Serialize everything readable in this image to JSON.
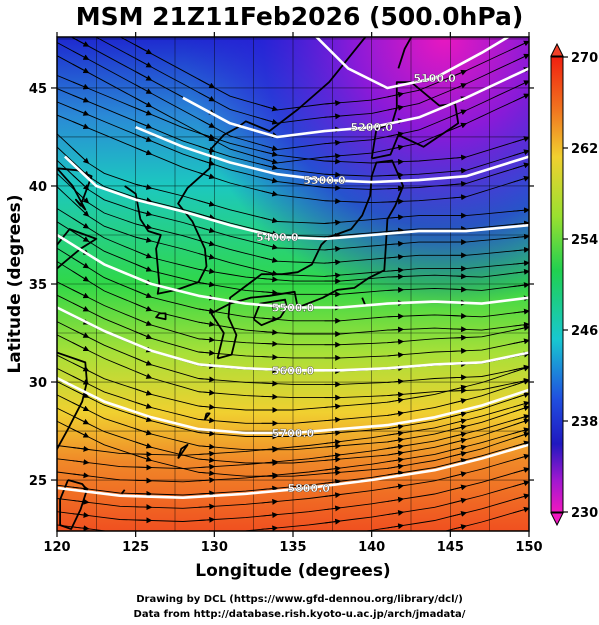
{
  "title": "MSM 21Z11Feb2026 (500.0hPa)",
  "credits": {
    "line1": "Drawing by DCL (https://www.gfd-dennou.org/library/dcl/)",
    "line2": "Data from http://database.rish.kyoto-u.ac.jp/arch/jmadata/"
  },
  "map": {
    "xlabel": "Longitude (degrees)",
    "ylabel": "Latitude  (degrees)",
    "xlim": [
      120,
      150
    ],
    "ylim": [
      22.4,
      47.6
    ],
    "xticks": [
      "120",
      "125",
      "130",
      "135",
      "140",
      "145",
      "150"
    ],
    "yticks": [
      "25",
      "30",
      "35",
      "40",
      "45"
    ],
    "contours": [
      {
        "label": "5100.0",
        "points": [
          [
            136.0,
            48.0
          ],
          [
            138.5,
            46.0
          ],
          [
            141.0,
            45.0
          ],
          [
            144.0,
            45.5
          ],
          [
            147.0,
            46.8
          ],
          [
            149.5,
            48.0
          ]
        ]
      },
      {
        "label": "5200.0",
        "points": [
          [
            128.0,
            44.5
          ],
          [
            131.0,
            43.2
          ],
          [
            134.0,
            42.5
          ],
          [
            137.0,
            42.8
          ],
          [
            140.0,
            43.0
          ],
          [
            143.0,
            43.5
          ],
          [
            146.0,
            44.5
          ],
          [
            150.0,
            46.0
          ]
        ]
      },
      {
        "label": "5300.0",
        "points": [
          [
            125.0,
            43.0
          ],
          [
            128.0,
            42.0
          ],
          [
            131.0,
            41.2
          ],
          [
            134.0,
            40.6
          ],
          [
            137.0,
            40.3
          ],
          [
            140.0,
            40.2
          ],
          [
            143.0,
            40.3
          ],
          [
            146.0,
            40.5
          ],
          [
            150.0,
            41.5
          ]
        ]
      },
      {
        "label": "5400.0",
        "points": [
          [
            120.5,
            41.5
          ],
          [
            122.5,
            40.0
          ],
          [
            125.0,
            39.3
          ],
          [
            128.0,
            38.7
          ],
          [
            131.0,
            38.0
          ],
          [
            134.0,
            37.4
          ],
          [
            137.0,
            37.3
          ],
          [
            140.0,
            37.5
          ],
          [
            143.0,
            37.7
          ],
          [
            146.0,
            37.7
          ],
          [
            150.0,
            38.0
          ]
        ]
      },
      {
        "label": "5500.0",
        "points": [
          [
            120.0,
            37.5
          ],
          [
            123.0,
            36.0
          ],
          [
            126.0,
            35.0
          ],
          [
            129.0,
            34.4
          ],
          [
            132.0,
            34.0
          ],
          [
            135.0,
            33.8
          ],
          [
            138.0,
            33.8
          ],
          [
            141.0,
            34.0
          ],
          [
            144.0,
            34.1
          ],
          [
            147.0,
            34.0
          ],
          [
            150.0,
            34.3
          ]
        ]
      },
      {
        "label": "5600.0",
        "points": [
          [
            120.0,
            33.8
          ],
          [
            123.0,
            32.6
          ],
          [
            126.0,
            31.6
          ],
          [
            129.0,
            30.9
          ],
          [
            132.0,
            30.7
          ],
          [
            135.0,
            30.6
          ],
          [
            138.0,
            30.6
          ],
          [
            141.0,
            30.7
          ],
          [
            144.0,
            30.9
          ],
          [
            147.0,
            31.0
          ],
          [
            150.0,
            31.5
          ]
        ]
      },
      {
        "label": "5700.0",
        "points": [
          [
            120.0,
            30.2
          ],
          [
            123.0,
            29.0
          ],
          [
            126.0,
            28.2
          ],
          [
            129.0,
            27.6
          ],
          [
            132.0,
            27.4
          ],
          [
            135.0,
            27.4
          ],
          [
            138.0,
            27.6
          ],
          [
            141.0,
            27.8
          ],
          [
            144.0,
            28.2
          ],
          [
            147.0,
            28.8
          ],
          [
            150.0,
            29.6
          ]
        ]
      },
      {
        "label": "5800.0",
        "points": [
          [
            120.0,
            24.6
          ],
          [
            124.0,
            24.2
          ],
          [
            128.0,
            24.1
          ],
          [
            132.0,
            24.3
          ],
          [
            136.0,
            24.6
          ],
          [
            140.0,
            25.0
          ],
          [
            144.0,
            25.5
          ],
          [
            147.0,
            26.1
          ],
          [
            150.0,
            26.8
          ]
        ]
      }
    ],
    "coastlines": [
      [
        [
          130.2,
          31.2
        ],
        [
          130.6,
          32.5
        ],
        [
          129.8,
          33.5
        ],
        [
          131.0,
          34.0
        ],
        [
          132.3,
          34.3
        ],
        [
          133.5,
          34.4
        ],
        [
          135.1,
          34.6
        ],
        [
          135.3,
          33.8
        ],
        [
          136.9,
          34.3
        ],
        [
          137.8,
          34.7
        ],
        [
          138.9,
          34.8
        ],
        [
          139.8,
          35.3
        ],
        [
          140.8,
          35.7
        ],
        [
          140.9,
          36.9
        ],
        [
          141.0,
          38.3
        ],
        [
          141.5,
          39.0
        ],
        [
          142.0,
          40.0
        ],
        [
          141.3,
          41.3
        ],
        [
          140.3,
          41.2
        ],
        [
          140.0,
          40.5
        ],
        [
          139.9,
          39.5
        ],
        [
          139.4,
          38.5
        ],
        [
          138.7,
          37.8
        ],
        [
          137.3,
          37.4
        ],
        [
          136.8,
          37.0
        ],
        [
          136.2,
          36.0
        ],
        [
          135.3,
          35.6
        ],
        [
          134.3,
          35.5
        ],
        [
          133.0,
          35.5
        ],
        [
          132.0,
          34.9
        ],
        [
          131.0,
          34.3
        ],
        [
          130.9,
          33.3
        ],
        [
          131.4,
          32.4
        ],
        [
          131.1,
          31.4
        ],
        [
          130.2,
          31.2
        ]
      ],
      [
        [
          132.5,
          33.2
        ],
        [
          132.9,
          34.0
        ],
        [
          134.5,
          34.2
        ],
        [
          134.6,
          33.8
        ],
        [
          134.2,
          33.3
        ],
        [
          133.0,
          32.9
        ],
        [
          132.5,
          33.2
        ]
      ],
      [
        [
          140.0,
          41.4
        ],
        [
          141.2,
          41.6
        ],
        [
          141.7,
          42.6
        ],
        [
          143.3,
          42.0
        ],
        [
          145.5,
          43.2
        ],
        [
          145.3,
          44.2
        ],
        [
          144.3,
          44.1
        ],
        [
          142.5,
          45.3
        ],
        [
          141.6,
          45.3
        ],
        [
          141.6,
          44.0
        ],
        [
          141.3,
          43.2
        ],
        [
          140.3,
          42.9
        ],
        [
          140.0,
          41.4
        ]
      ],
      [
        [
          141.7,
          46.0
        ],
        [
          142.1,
          47.0
        ],
        [
          142.8,
          48.0
        ]
      ],
      [
        [
          120.0,
          40.9
        ],
        [
          121.3,
          40.8
        ],
        [
          122.2,
          40.5
        ],
        [
          121.5,
          39.0
        ],
        [
          121.2,
          39.3
        ],
        [
          121.8,
          38.8
        ],
        [
          121.0,
          40.0
        ],
        [
          120.0,
          40.9
        ]
      ],
      [
        [
          124.3,
          40.0
        ],
        [
          125.0,
          39.6
        ],
        [
          125.3,
          38.3
        ],
        [
          125.8,
          37.7
        ],
        [
          126.6,
          37.5
        ],
        [
          126.3,
          36.8
        ],
        [
          126.5,
          35.0
        ],
        [
          126.4,
          34.5
        ],
        [
          127.6,
          34.7
        ],
        [
          129.0,
          35.1
        ],
        [
          129.5,
          35.9
        ],
        [
          129.4,
          36.8
        ],
        [
          128.6,
          38.2
        ],
        [
          127.7,
          39.1
        ],
        [
          128.3,
          39.9
        ],
        [
          129.7,
          40.9
        ],
        [
          129.8,
          41.9
        ],
        [
          130.6,
          42.6
        ],
        [
          131.5,
          43.0
        ],
        [
          132.0,
          43.3
        ],
        [
          133.5,
          42.8
        ],
        [
          135.3,
          43.9
        ],
        [
          137.3,
          45.3
        ],
        [
          139.0,
          47.0
        ],
        [
          140.0,
          48.0
        ]
      ],
      [
        [
          120.0,
          37.0
        ],
        [
          120.8,
          37.8
        ],
        [
          122.5,
          37.3
        ],
        [
          121.5,
          36.8
        ],
        [
          120.3,
          36.0
        ],
        [
          119.6,
          35.5
        ]
      ],
      [
        [
          120.0,
          31.5
        ],
        [
          121.8,
          31.0
        ],
        [
          121.9,
          30.0
        ],
        [
          121.6,
          29.0
        ],
        [
          120.7,
          27.6
        ],
        [
          119.6,
          26.0
        ]
      ],
      [
        [
          120.7,
          25.0
        ],
        [
          121.6,
          24.8
        ],
        [
          121.9,
          24.5
        ],
        [
          121.5,
          23.5
        ],
        [
          120.9,
          22.5
        ],
        [
          120.2,
          22.7
        ],
        [
          120.2,
          24.0
        ],
        [
          120.7,
          25.0
        ]
      ],
      [
        [
          126.5,
          33.5
        ],
        [
          126.9,
          33.5
        ],
        [
          126.9,
          33.2
        ],
        [
          126.3,
          33.3
        ],
        [
          126.5,
          33.5
        ]
      ],
      [
        [
          127.7,
          26.1
        ],
        [
          128.3,
          26.8
        ],
        [
          127.9,
          26.6
        ],
        [
          127.7,
          26.1
        ]
      ],
      [
        [
          129.5,
          28.4
        ],
        [
          129.7,
          28.4
        ],
        [
          129.4,
          28.1
        ],
        [
          129.5,
          28.4
        ]
      ],
      [
        [
          139.4,
          34.3
        ],
        [
          139.6,
          33.9
        ]
      ],
      [
        [
          124.1,
          24.3
        ],
        [
          124.3,
          24.5
        ]
      ]
    ]
  },
  "colorbar": {
    "labels": [
      "270",
      "262",
      "254",
      "246",
      "238",
      "230"
    ],
    "value_min": 230,
    "value_max": 270
  }
}
